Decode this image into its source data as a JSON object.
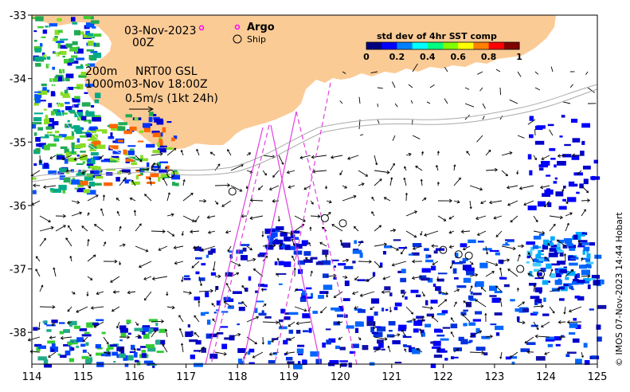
{
  "map": {
    "date": "03-Nov-2023",
    "time": "00Z",
    "contours": "200m",
    "contours_2": "1000m",
    "product": "NRT00 GSL",
    "product_time": "03-Nov 18:00Z",
    "vector_scale": "0.5m/s (1kt 24h)",
    "credit": "© IMOS 07-Nov-2023 14:44 Hobart"
  },
  "legend": {
    "argo_label": "Argo",
    "ship_label": "Ship",
    "argo_color": "#ff00ff",
    "ship_color": "#000000"
  },
  "colorbar": {
    "title": "std dev of 4hr SST comp",
    "ticks": [
      "0",
      "0.2",
      "0.4",
      "0.6",
      "0.8",
      "1"
    ],
    "colors": [
      "#000080",
      "#0000ff",
      "#0080ff",
      "#00ffff",
      "#00ff80",
      "#80ff00",
      "#ffff00",
      "#ff8000",
      "#ff0000",
      "#800000"
    ]
  },
  "chart_data": {
    "type": "map",
    "xlabel": "",
    "ylabel": "",
    "xlim": [
      114,
      125
    ],
    "ylim": [
      -38.5,
      -33
    ],
    "x_ticks": [
      "114",
      "115",
      "116",
      "117",
      "118",
      "119",
      "120",
      "121",
      "122",
      "123",
      "124",
      "125"
    ],
    "y_ticks": [
      "-33",
      "-34",
      "-35",
      "-36",
      "-37",
      "-38"
    ],
    "land_color": "#fbcb96",
    "ships": [
      {
        "lon": 116.4,
        "lat": -35.4
      },
      {
        "lon": 116.7,
        "lat": -35.5
      },
      {
        "lon": 117.9,
        "lat": -35.78
      },
      {
        "lon": 119.7,
        "lat": -36.2
      },
      {
        "lon": 120.05,
        "lat": -36.28
      },
      {
        "lon": 122.0,
        "lat": -36.7
      },
      {
        "lon": 122.3,
        "lat": -36.77
      },
      {
        "lon": 122.5,
        "lat": -36.79
      },
      {
        "lon": 123.5,
        "lat": -37.0
      },
      {
        "lon": 123.9,
        "lat": -37.08
      }
    ],
    "argo": [
      {
        "lon": 117.3,
        "lat": -33.2
      }
    ]
  }
}
